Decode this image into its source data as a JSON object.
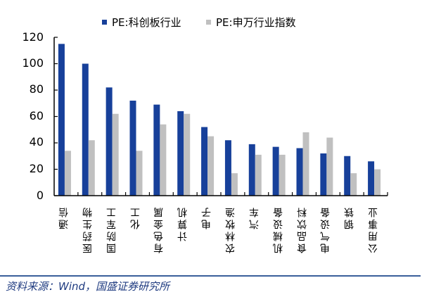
{
  "colors": {
    "series_kechuang": "#17409a",
    "series_shenwan": "#c0c0c0",
    "axis": "#000000",
    "divider": "#3a5f9a",
    "source_text": "#1f3b80"
  },
  "legend": [
    {
      "label": "PE:科创板行业",
      "color": "#17409a"
    },
    {
      "label": "PE:申万行业指数",
      "color": "#c0c0c0"
    }
  ],
  "yaxis": {
    "ticks": [
      "120",
      "100",
      "80",
      "60",
      "40",
      "20",
      "0"
    ]
  },
  "source": "资料来源：Wind，国盛证券研究所",
  "chart_data": {
    "type": "bar",
    "title": "",
    "xlabel": "",
    "ylabel": "",
    "ylim": [
      0,
      120
    ],
    "yticks": [
      0,
      20,
      40,
      60,
      80,
      100,
      120
    ],
    "grid": false,
    "legend_position": "top",
    "categories": [
      "通信",
      "医药生物",
      "国防军工",
      "化工",
      "有色金属",
      "计算机",
      "电子",
      "农林牧渔",
      "汽车",
      "机械设备",
      "食品饮料",
      "电气设备",
      "钢铁",
      "公用事业"
    ],
    "series": [
      {
        "name": "PE:科创板行业",
        "values": [
          115,
          100,
          82,
          72,
          69,
          64,
          52,
          42,
          39,
          37,
          36,
          32,
          30,
          26
        ]
      },
      {
        "name": "PE:申万行业指数",
        "values": [
          34,
          42,
          62,
          34,
          54,
          62,
          45,
          17,
          31,
          31,
          48,
          44,
          17,
          20
        ]
      }
    ]
  }
}
